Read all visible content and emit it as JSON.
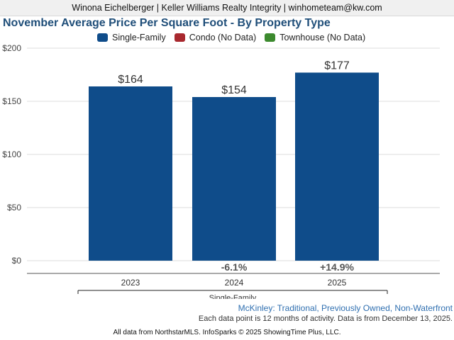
{
  "header": {
    "agent_line": "Winona Eichelberger | Keller Williams Realty Integrity | winhometeam@kw.com"
  },
  "title": "November Average Price Per Square Foot - By Property Type",
  "legend": [
    {
      "label": "Single-Family",
      "color": "#0f4c8a"
    },
    {
      "label": "Condo (No Data)",
      "color": "#a8282e"
    },
    {
      "label": "Townhouse (No Data)",
      "color": "#3c8a2e"
    }
  ],
  "chart_data": {
    "type": "bar",
    "title": "November Average Price Per Square Foot - By Property Type",
    "categories": [
      "2023",
      "2024",
      "2025"
    ],
    "series": [
      {
        "name": "Single-Family",
        "values": [
          164,
          154,
          177
        ],
        "color": "#0f4c8a"
      }
    ],
    "value_labels": [
      "$164",
      "$154",
      "$177"
    ],
    "change_labels": [
      "",
      "-6.1%",
      "+14.9%"
    ],
    "change_colors": [
      "#555555",
      "#555555",
      "#555555"
    ],
    "yticks": [
      0,
      50,
      100,
      150,
      200
    ],
    "ytick_labels": [
      "$0",
      "$50",
      "$100",
      "$150",
      "$200"
    ],
    "ylim": [
      0,
      200
    ],
    "group_label": "Single-Family",
    "grid": true,
    "legend_position": "top"
  },
  "region_text": "McKinley: Traditional, Previously Owned, Non-Waterfront",
  "note_text": "Each data point is 12 months of activity. Data is from December 13, 2025.",
  "footer_text": "All data from NorthstarMLS. InfoSparks © 2025 ShowingTime Plus, LLC."
}
